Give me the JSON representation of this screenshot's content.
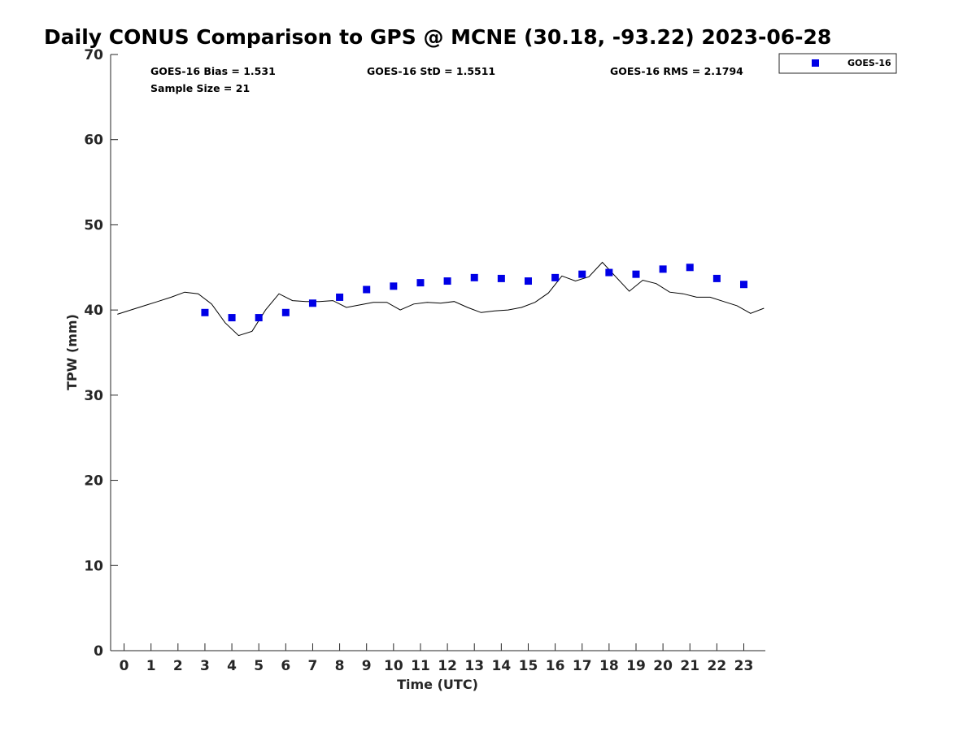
{
  "chart_data": {
    "type": "scatter",
    "title": "Daily CONUS Comparison to GPS @ MCNE (30.18, -93.22) 2023-06-28",
    "xlabel": "Time (UTC)",
    "ylabel": "TPW (mm)",
    "xlim": [
      -0.5,
      23.8
    ],
    "ylim": [
      0,
      70
    ],
    "xticks": [
      "0",
      "1",
      "2",
      "3",
      "4",
      "5",
      "6",
      "7",
      "8",
      "9",
      "10",
      "11",
      "12",
      "13",
      "14",
      "15",
      "16",
      "17",
      "18",
      "19",
      "20",
      "21",
      "22",
      "23"
    ],
    "yticks": [
      "0",
      "10",
      "20",
      "30",
      "40",
      "50",
      "60",
      "70"
    ],
    "grid": false,
    "legend_position": "outside-top-right",
    "stats": {
      "bias": "GOES-16 Bias = 1.531",
      "std": "GOES-16 StD = 1.5511",
      "rms": "GOES-16 RMS = 2.1794",
      "sample_size": "Sample Size = 21"
    },
    "series": [
      {
        "name": "GOES-16",
        "kind": "markers",
        "color": "#0000e6",
        "x": [
          3,
          4,
          5,
          6,
          7,
          8,
          9,
          10,
          11,
          12,
          13,
          14,
          15,
          16,
          17,
          18,
          19,
          20,
          21,
          22,
          23
        ],
        "y": [
          39.7,
          39.1,
          39.1,
          39.7,
          40.8,
          41.5,
          42.4,
          42.8,
          43.2,
          43.4,
          43.8,
          43.7,
          43.4,
          43.8,
          44.2,
          44.4,
          44.2,
          44.8,
          45.0,
          43.7,
          43.0
        ]
      },
      {
        "kind": "line",
        "color": "#000000",
        "x": [
          -0.25,
          0.25,
          0.75,
          1.25,
          1.75,
          2.25,
          2.75,
          3.25,
          3.75,
          4.25,
          4.75,
          5.25,
          5.75,
          6.25,
          6.75,
          7.25,
          7.75,
          8.25,
          8.75,
          9.25,
          9.75,
          10.25,
          10.75,
          11.25,
          11.75,
          12.25,
          12.75,
          13.25,
          13.75,
          14.25,
          14.75,
          15.25,
          15.75,
          16.25,
          16.75,
          17.25,
          17.75,
          18.25,
          18.75,
          19.25,
          19.75,
          20.25,
          20.75,
          21.25,
          21.75,
          22.25,
          22.75,
          23.25,
          23.75
        ],
        "y": [
          39.5,
          40.0,
          40.5,
          41.0,
          41.5,
          42.1,
          41.9,
          40.7,
          38.5,
          37.0,
          37.5,
          40.0,
          41.9,
          41.1,
          41.0,
          41.0,
          41.1,
          40.3,
          40.6,
          40.9,
          40.9,
          40.0,
          40.7,
          40.9,
          40.8,
          41.0,
          40.3,
          39.7,
          39.9,
          40.0,
          40.3,
          40.9,
          42.0,
          44.0,
          43.4,
          43.9,
          45.6,
          43.9,
          42.2,
          43.5,
          43.1,
          42.1,
          41.9,
          41.5,
          41.5,
          41.0,
          40.5,
          39.6,
          40.2
        ]
      }
    ]
  }
}
